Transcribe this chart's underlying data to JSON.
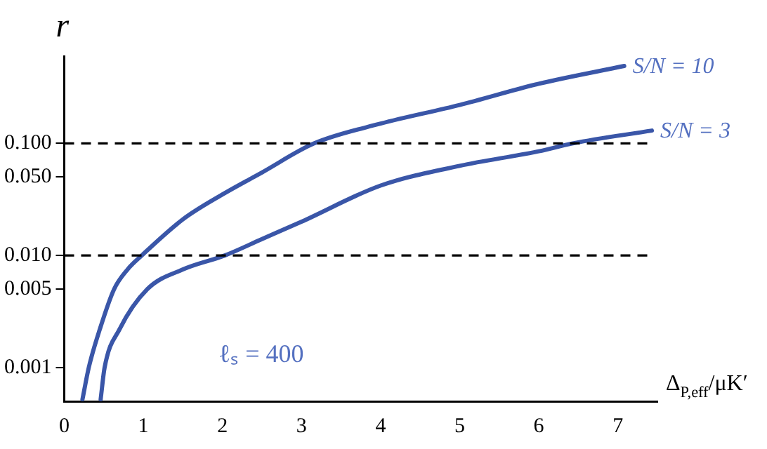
{
  "chart_data": {
    "type": "line",
    "xlabel": "Δ$_{P,eff}$/μK′",
    "ylabel": "r",
    "xlim": [
      0,
      7.5
    ],
    "xticks": [
      0,
      1,
      2,
      3,
      4,
      5,
      6,
      7
    ],
    "ylim": [
      0.0005,
      0.6
    ],
    "yticks": [
      {
        "value": 0.001,
        "label": "0.001"
      },
      {
        "value": 0.005,
        "label": "0.005"
      },
      {
        "value": 0.01,
        "label": "0.010"
      },
      {
        "value": 0.05,
        "label": "0.050"
      },
      {
        "value": 0.1,
        "label": "0.100"
      }
    ],
    "log": "y",
    "grid": false,
    "legend": false,
    "marker": "none",
    "line_style": "solid",
    "series": [
      {
        "name": "S/N = 10",
        "color": "#3a56a8",
        "x": [
          0.23,
          0.31,
          0.45,
          0.63,
          0.8,
          0.98,
          1.5,
          2,
          2.5,
          3.16,
          4,
          5,
          6,
          7.08
        ],
        "values": [
          0.00052,
          0.001,
          0.0022,
          0.005,
          0.0075,
          0.01,
          0.021,
          0.035,
          0.055,
          0.1,
          0.15,
          0.22,
          0.34,
          0.49
        ]
      },
      {
        "name": "S/N = 3",
        "color": "#3a56a8",
        "x": [
          0.46,
          0.51,
          0.7,
          1.05,
          1.5,
          2.03,
          2.5,
          3,
          4,
          5,
          6,
          6.43,
          7.43
        ],
        "values": [
          0.00052,
          0.001,
          0.0022,
          0.005,
          0.0075,
          0.01,
          0.014,
          0.02,
          0.042,
          0.063,
          0.085,
          0.1,
          0.13
        ]
      }
    ],
    "ref_lines": [
      {
        "axis": "y",
        "value": 0.01,
        "color": "#000000",
        "line_style": "dashed"
      },
      {
        "axis": "y",
        "value": 0.1,
        "color": "#000000",
        "line_style": "dashed"
      }
    ],
    "annotations": [
      "ℓₛ = 400"
    ]
  }
}
